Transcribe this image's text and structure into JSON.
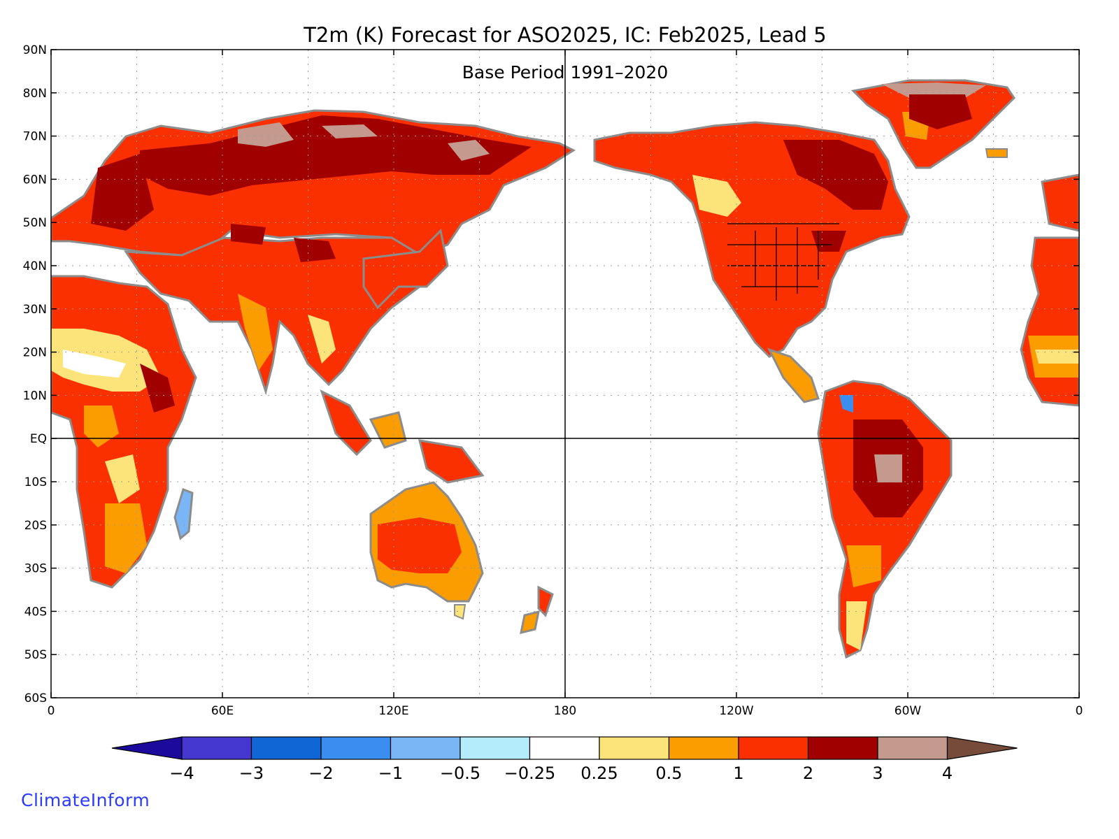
{
  "map": {
    "title": "T2m (K) Forecast for ASO2025, IC: Feb2025, Lead 5",
    "subtitle": "Base Period 1991–2020",
    "projection": "equirectangular",
    "lon_range_east": [
      0,
      360
    ],
    "lat_range": [
      -60,
      90
    ],
    "lat_ticks": [
      "90N",
      "80N",
      "70N",
      "60N",
      "50N",
      "40N",
      "30N",
      "20N",
      "10N",
      "EQ",
      "10S",
      "20S",
      "30S",
      "40S",
      "50S",
      "60S"
    ],
    "lon_ticks": [
      "0",
      "60E",
      "120E",
      "180",
      "120W",
      "60W",
      "0"
    ],
    "grid": "dotted",
    "reference_lines": [
      "equator",
      "dateline"
    ]
  },
  "colorbar": {
    "labels": [
      "−4",
      "−3",
      "−2",
      "−1",
      "−0.5",
      "−0.25",
      "0.25",
      "0.5",
      "1",
      "2",
      "3",
      "4"
    ],
    "colors": [
      "#1c0a9c",
      "#4438d0",
      "#1166d6",
      "#3a8ef0",
      "#7ab6f6",
      "#b4ecfc",
      "#ffffff",
      "#fde47a",
      "#fb9d00",
      "#fb3000",
      "#a10000",
      "#c49a8e",
      "#764b3a"
    ],
    "extend": "both"
  },
  "regions": [
    {
      "name": "europe-russia",
      "anomaly_band": "2 to 3"
    },
    {
      "name": "siberia-north",
      "anomaly_band": "3 to 4"
    },
    {
      "name": "central-asia",
      "anomaly_band": "1 to 2"
    },
    {
      "name": "india-southeast-asia",
      "anomaly_band": "0.5 to 1"
    },
    {
      "name": "sahel-west-africa",
      "anomaly_band": "-0.25 to 0.5"
    },
    {
      "name": "southern-africa",
      "anomaly_band": "1 to 2"
    },
    {
      "name": "australia",
      "anomaly_band": "0.5 to 2"
    },
    {
      "name": "north-america",
      "anomaly_band": "1 to 3"
    },
    {
      "name": "greenland",
      "anomaly_band": "1 to 4"
    },
    {
      "name": "south-america-center",
      "anomaly_band": "2 to 4"
    }
  ],
  "branding": {
    "watermark": "ClimateInform"
  }
}
